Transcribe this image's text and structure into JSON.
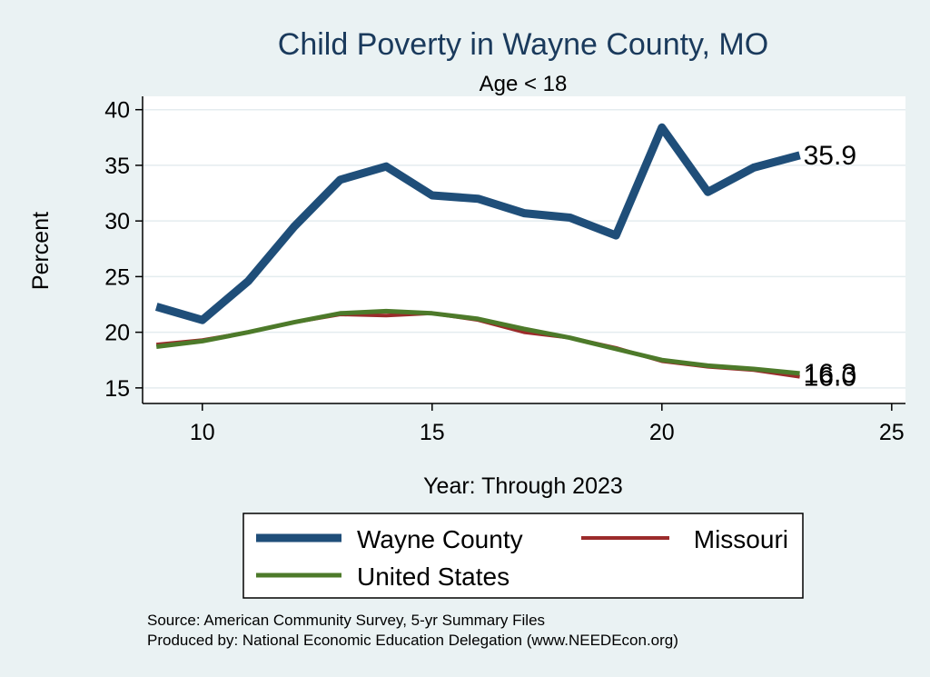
{
  "chart_data": {
    "type": "line",
    "title": "Child Poverty in Wayne County, MO",
    "subtitle": "Age < 18",
    "xlabel": "Year: Through 2023",
    "ylabel": "Percent",
    "xlim": [
      8.7,
      25.3
    ],
    "ylim": [
      13.6,
      41.2
    ],
    "xticks": [
      10,
      15,
      20,
      25
    ],
    "yticks": [
      15,
      20,
      25,
      30,
      35,
      40
    ],
    "grid": true,
    "x": [
      9,
      10,
      11,
      12,
      13,
      14,
      15,
      16,
      17,
      18,
      19,
      20,
      21,
      22,
      23
    ],
    "series": [
      {
        "name": "Wayne County",
        "color": "#1f4e79",
        "width": 9,
        "values": [
          22.3,
          21.1,
          24.6,
          29.5,
          33.7,
          34.9,
          32.3,
          32.0,
          30.7,
          30.3,
          28.7,
          38.4,
          32.6,
          34.8,
          35.9
        ],
        "end_label": "35.9"
      },
      {
        "name": "Missouri",
        "color": "#9b2b2b",
        "width": 4,
        "values": [
          18.9,
          19.3,
          20.0,
          20.9,
          21.6,
          21.5,
          21.7,
          21.1,
          20.0,
          19.5,
          18.6,
          17.4,
          16.9,
          16.6,
          16.0
        ],
        "end_label": "16.0"
      },
      {
        "name": "United States",
        "color": "#4d7a2a",
        "width": 5,
        "values": [
          18.7,
          19.2,
          20.0,
          20.9,
          21.7,
          21.9,
          21.7,
          21.2,
          20.3,
          19.5,
          18.5,
          17.5,
          17.0,
          16.7,
          16.3
        ],
        "end_label": "16.3"
      }
    ],
    "legend": {
      "position": "bottom",
      "items": [
        "Wayne County",
        "Missouri",
        "United States"
      ]
    }
  },
  "source": {
    "line1": "Source: American Community Survey, 5-yr Summary Files",
    "line2": "Produced by: National Economic Education Delegation (www.NEEDEcon.org)"
  },
  "colors": {
    "background": "#eaf2f3",
    "plot_background": "#ffffff",
    "grid": "#e4ecef",
    "title": "#1a3a5c"
  }
}
